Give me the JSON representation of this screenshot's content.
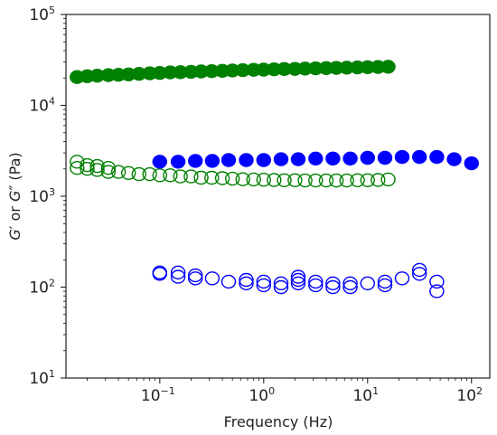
{
  "chart_data": {
    "type": "scatter",
    "xlabel": "Frequency (Hz)",
    "ylabel": "G′ or G″ (Pa)",
    "ylabel_parts": [
      "G",
      "′",
      " or ",
      "G",
      "″",
      " (Pa)"
    ],
    "xscale": "log",
    "yscale": "log",
    "xlim": [
      0.0125,
      150
    ],
    "ylim": [
      10,
      100000
    ],
    "x_tick_exponents": [
      -1,
      0,
      1,
      2
    ],
    "y_tick_exponents": [
      1,
      2,
      3,
      4,
      5
    ],
    "grid": false,
    "legend": "none",
    "series": [
      {
        "color": "#008000",
        "fill": "filled",
        "x": [
          0.016,
          0.02,
          0.025,
          0.032,
          0.04,
          0.05,
          0.063,
          0.08,
          0.1,
          0.126,
          0.158,
          0.2,
          0.25,
          0.316,
          0.4,
          0.5,
          0.63,
          0.8,
          1.0,
          1.26,
          1.58,
          2.0,
          2.5,
          3.16,
          4.0,
          5.0,
          6.3,
          8.0,
          10.0,
          12.6,
          15.8
        ],
        "y": [
          20500,
          20900,
          21200,
          21500,
          21700,
          21900,
          22200,
          22500,
          22700,
          23000,
          23200,
          23400,
          23600,
          23800,
          24000,
          24200,
          24400,
          24600,
          24700,
          24900,
          25100,
          25200,
          25400,
          25500,
          25700,
          25800,
          26000,
          26100,
          26300,
          26400,
          26600
        ]
      },
      {
        "color": "#008000",
        "fill": "open",
        "x": [
          0.016,
          0.016,
          0.02,
          0.02,
          0.025,
          0.025,
          0.032,
          0.032,
          0.04,
          0.05,
          0.063,
          0.08,
          0.1,
          0.126,
          0.158,
          0.2,
          0.25,
          0.316,
          0.4,
          0.5,
          0.63,
          0.8,
          1.0,
          1.26,
          1.58,
          2.0,
          2.5,
          3.16,
          4.0,
          5.0,
          6.3,
          8.0,
          10.0,
          12.6,
          15.8
        ],
        "y": [
          2400,
          2050,
          2200,
          2000,
          2150,
          1950,
          2050,
          1850,
          1850,
          1800,
          1750,
          1750,
          1700,
          1700,
          1650,
          1650,
          1600,
          1600,
          1580,
          1560,
          1540,
          1530,
          1520,
          1510,
          1500,
          1500,
          1490,
          1490,
          1490,
          1490,
          1490,
          1500,
          1500,
          1510,
          1530
        ]
      },
      {
        "color": "#0000ff",
        "fill": "filled",
        "x": [
          0.1,
          0.15,
          0.22,
          0.32,
          0.46,
          0.68,
          1.0,
          1.47,
          2.15,
          3.16,
          4.64,
          6.81,
          10.0,
          14.7,
          21.5,
          31.6,
          46.4,
          68.1,
          100.0
        ],
        "y": [
          2400,
          2400,
          2450,
          2450,
          2500,
          2500,
          2500,
          2550,
          2550,
          2600,
          2600,
          2600,
          2650,
          2650,
          2700,
          2700,
          2700,
          2550,
          2300
        ]
      },
      {
        "color": "#0000ff",
        "fill": "open",
        "x": [
          0.1,
          0.1,
          0.15,
          0.15,
          0.22,
          0.22,
          0.32,
          0.46,
          0.68,
          0.68,
          1.0,
          1.0,
          1.47,
          1.47,
          2.15,
          2.15,
          2.15,
          3.16,
          3.16,
          4.64,
          4.64,
          6.81,
          6.81,
          10.0,
          14.7,
          14.7,
          21.5,
          31.6,
          31.6,
          46.4,
          46.4
        ],
        "y": [
          145,
          140,
          145,
          130,
          135,
          125,
          125,
          115,
          120,
          110,
          115,
          105,
          110,
          100,
          130,
          120,
          110,
          115,
          105,
          110,
          100,
          110,
          100,
          110,
          115,
          105,
          125,
          155,
          140,
          115,
          90
        ]
      }
    ]
  }
}
